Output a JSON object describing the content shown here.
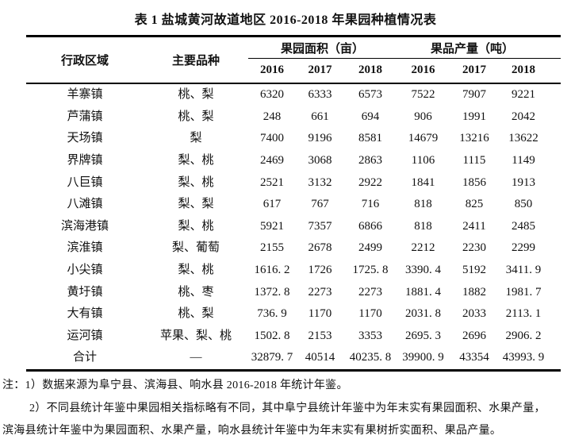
{
  "title": "表 1 盐城黄河故道地区 2016-2018 年果园种植情况表",
  "table": {
    "col_headers": {
      "region": "行政区域",
      "variety": "主要品种",
      "area_group": "果园面积（亩）",
      "yield_group": "果品产量（吨）",
      "years": [
        "2016",
        "2017",
        "2018",
        "2016",
        "2017",
        "2018"
      ]
    },
    "rows": [
      {
        "region": "羊寨镇",
        "variety": "桃、梨",
        "values": [
          "6320",
          "6333",
          "6573",
          "7522",
          "7907",
          "9221"
        ]
      },
      {
        "region": "芦蒲镇",
        "variety": "桃、梨",
        "values": [
          "248",
          "661",
          "694",
          "906",
          "1991",
          "2042"
        ]
      },
      {
        "region": "天场镇",
        "variety": "梨",
        "values": [
          "7400",
          "9196",
          "8581",
          "14679",
          "13216",
          "13622"
        ]
      },
      {
        "region": "界牌镇",
        "variety": "梨、桃",
        "values": [
          "2469",
          "3068",
          "2863",
          "1106",
          "1115",
          "1149"
        ]
      },
      {
        "region": "八巨镇",
        "variety": "梨、桃",
        "values": [
          "2521",
          "3132",
          "2922",
          "1841",
          "1856",
          "1913"
        ]
      },
      {
        "region": "八滩镇",
        "variety": "梨、梨",
        "values": [
          "617",
          "767",
          "716",
          "818",
          "825",
          "850"
        ]
      },
      {
        "region": "滨海港镇",
        "variety": "梨、桃",
        "values": [
          "5921",
          "7357",
          "6866",
          "818",
          "2411",
          "2485"
        ]
      },
      {
        "region": "滨淮镇",
        "variety": "梨、葡萄",
        "values": [
          "2155",
          "2678",
          "2499",
          "2212",
          "2230",
          "2299"
        ]
      },
      {
        "region": "小尖镇",
        "variety": "梨、桃",
        "values": [
          "1616. 2",
          "1726",
          "1725. 8",
          "3390. 4",
          "5192",
          "3411. 9"
        ]
      },
      {
        "region": "黄圩镇",
        "variety": "桃、枣",
        "values": [
          "1372. 8",
          "2273",
          "2273",
          "1881. 4",
          "1882",
          "1981. 7"
        ]
      },
      {
        "region": "大有镇",
        "variety": "桃、梨",
        "values": [
          "736. 9",
          "1170",
          "1170",
          "2031. 8",
          "2033",
          "2113. 1"
        ]
      },
      {
        "region": "运河镇",
        "variety": "苹果、梨、桃",
        "values": [
          "1502. 8",
          "2153",
          "3353",
          "2695. 3",
          "2696",
          "2906. 2"
        ]
      },
      {
        "region": "合计",
        "variety": "—",
        "values": [
          "32879. 7",
          "40514",
          "40235. 8",
          "39900. 9",
          "43354",
          "43993. 9"
        ]
      }
    ]
  },
  "notes": {
    "line1": "注：1）数据来源为阜宁县、滨海县、响水县 2016-2018 年统计年鉴。",
    "line2": "2）不同县统计年鉴中果园相关指标略有不同，其中阜宁县统计年鉴中为年末实有果园面积、水果产量，",
    "line3": "滨海县统计年鉴中为果园面积、水果产量，响水县统计年鉴中为年末实有果树折实面积、果品产量。"
  },
  "colors": {
    "text": "#111111",
    "background": "#ffffff",
    "rule": "#000000"
  }
}
